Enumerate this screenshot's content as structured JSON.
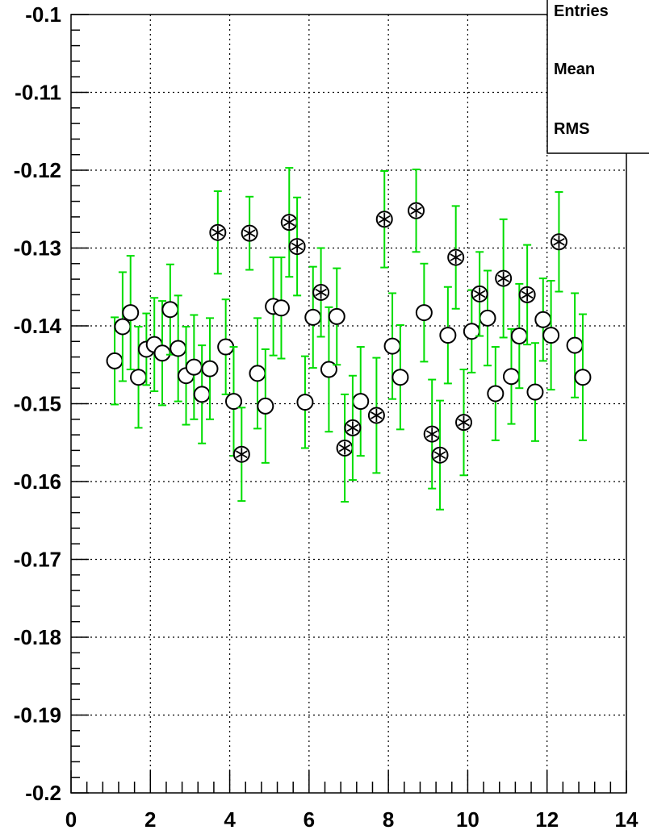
{
  "chart_data": {
    "type": "scatter",
    "xlim": [
      0,
      14
    ],
    "ylim": [
      -0.2,
      -0.1
    ],
    "x_ticks": [
      "0",
      "2",
      "4",
      "6",
      "8",
      "10",
      "12",
      "14"
    ],
    "y_ticks": [
      "-0.2",
      "-0.19",
      "-0.18",
      "-0.17",
      "-0.16",
      "-0.15",
      "-0.14",
      "-0.13",
      "-0.12",
      "-0.11",
      "-0.1"
    ],
    "grid": true,
    "legend": {
      "placement": "top-right",
      "entries": [
        "Entries",
        "Mean",
        "RMS"
      ]
    },
    "error_bar_color": "#00dd00",
    "series": [
      {
        "marker": "open-circle",
        "points": [
          {
            "x": 1.1,
            "y": -0.1445,
            "err": 0.0056
          },
          {
            "x": 1.3,
            "y": -0.1401,
            "err": 0.007
          },
          {
            "x": 1.5,
            "y": -0.1383,
            "err": 0.0073
          },
          {
            "x": 1.7,
            "y": -0.1466,
            "err": 0.0065
          },
          {
            "x": 1.9,
            "y": -0.143,
            "err": 0.0046
          },
          {
            "x": 2.1,
            "y": -0.1424,
            "err": 0.006
          },
          {
            "x": 2.3,
            "y": -0.1435,
            "err": 0.0067
          },
          {
            "x": 2.5,
            "y": -0.1379,
            "err": 0.0058
          },
          {
            "x": 2.7,
            "y": -0.1429,
            "err": 0.0068
          },
          {
            "x": 2.9,
            "y": -0.1464,
            "err": 0.0063
          },
          {
            "x": 3.1,
            "y": -0.1453,
            "err": 0.0067
          },
          {
            "x": 3.3,
            "y": -0.1488,
            "err": 0.0063
          },
          {
            "x": 3.5,
            "y": -0.1455,
            "err": 0.0065
          },
          {
            "x": 3.9,
            "y": -0.1427,
            "err": 0.0061
          },
          {
            "x": 4.1,
            "y": -0.1497,
            "err": 0.007
          },
          {
            "x": 4.7,
            "y": -0.1461,
            "err": 0.0071
          },
          {
            "x": 4.9,
            "y": -0.1503,
            "err": 0.0073
          },
          {
            "x": 5.1,
            "y": -0.1375,
            "err": 0.0063
          },
          {
            "x": 5.3,
            "y": -0.1377,
            "err": 0.0065
          },
          {
            "x": 5.9,
            "y": -0.1498,
            "err": 0.0059
          },
          {
            "x": 6.1,
            "y": -0.1389,
            "err": 0.0065
          },
          {
            "x": 6.5,
            "y": -0.1456,
            "err": 0.008
          },
          {
            "x": 6.7,
            "y": -0.1388,
            "err": 0.0062
          },
          {
            "x": 7.3,
            "y": -0.1497,
            "err": 0.007
          },
          {
            "x": 8.1,
            "y": -0.1426,
            "err": 0.0068
          },
          {
            "x": 8.3,
            "y": -0.1466,
            "err": 0.0067
          },
          {
            "x": 8.9,
            "y": -0.1383,
            "err": 0.0063
          },
          {
            "x": 9.5,
            "y": -0.1412,
            "err": 0.0062
          },
          {
            "x": 10.1,
            "y": -0.1407,
            "err": 0.0053
          },
          {
            "x": 10.5,
            "y": -0.139,
            "err": 0.0061
          },
          {
            "x": 10.7,
            "y": -0.1487,
            "err": 0.006
          },
          {
            "x": 11.1,
            "y": -0.1465,
            "err": 0.0061
          },
          {
            "x": 11.3,
            "y": -0.1413,
            "err": 0.0067
          },
          {
            "x": 11.7,
            "y": -0.1485,
            "err": 0.0063
          },
          {
            "x": 11.9,
            "y": -0.1392,
            "err": 0.0053
          },
          {
            "x": 12.1,
            "y": -0.1412,
            "err": 0.007
          },
          {
            "x": 12.7,
            "y": -0.1425,
            "err": 0.0067
          },
          {
            "x": 12.9,
            "y": -0.1466,
            "err": 0.0081
          }
        ]
      },
      {
        "marker": "circle-star",
        "points": [
          {
            "x": 3.7,
            "y": -0.128,
            "err": 0.0053
          },
          {
            "x": 4.3,
            "y": -0.1565,
            "err": 0.006
          },
          {
            "x": 4.5,
            "y": -0.1281,
            "err": 0.0047
          },
          {
            "x": 5.5,
            "y": -0.1267,
            "err": 0.007
          },
          {
            "x": 5.7,
            "y": -0.1298,
            "err": 0.0063
          },
          {
            "x": 6.3,
            "y": -0.1357,
            "err": 0.0057
          },
          {
            "x": 6.9,
            "y": -0.1557,
            "err": 0.0069
          },
          {
            "x": 7.1,
            "y": -0.1531,
            "err": 0.0067
          },
          {
            "x": 7.7,
            "y": -0.1515,
            "err": 0.0074
          },
          {
            "x": 7.9,
            "y": -0.1263,
            "err": 0.0062
          },
          {
            "x": 8.7,
            "y": -0.1252,
            "err": 0.0053
          },
          {
            "x": 9.1,
            "y": -0.1539,
            "err": 0.007
          },
          {
            "x": 9.3,
            "y": -0.1566,
            "err": 0.007
          },
          {
            "x": 9.7,
            "y": -0.1312,
            "err": 0.0066
          },
          {
            "x": 9.9,
            "y": -0.1524,
            "err": 0.0068
          },
          {
            "x": 10.3,
            "y": -0.1359,
            "err": 0.0054
          },
          {
            "x": 10.9,
            "y": -0.1339,
            "err": 0.0076
          },
          {
            "x": 11.5,
            "y": -0.136,
            "err": 0.0064
          },
          {
            "x": 12.3,
            "y": -0.1292,
            "err": 0.0064
          }
        ]
      }
    ]
  }
}
